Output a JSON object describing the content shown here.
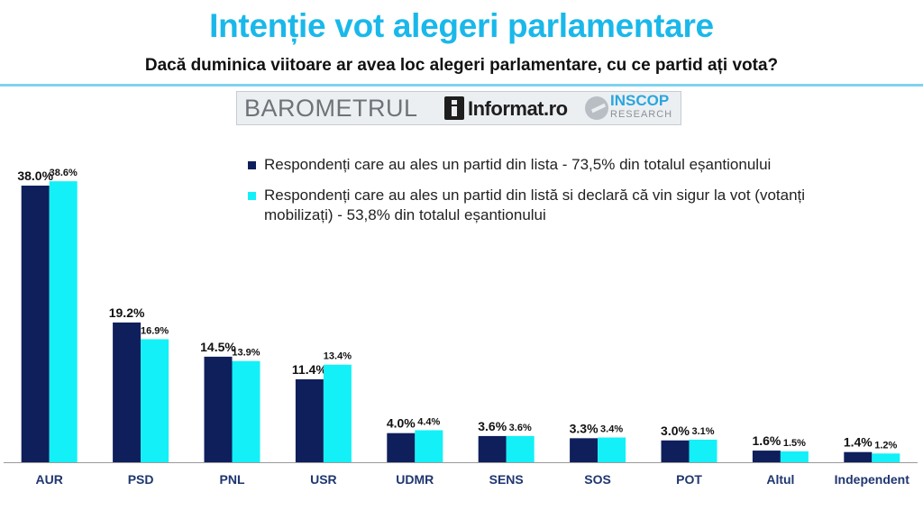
{
  "header": {
    "title": "Intenție vot alegeri parlamentare",
    "subtitle": "Dacă duminica viitoare ar avea loc alegeri parlamentare, cu ce partid ați vota?"
  },
  "logos": {
    "barometrul": "BAROMETRUL",
    "informat": "Informat.ro",
    "inscop": "INSCOP",
    "research": "RESEARCH"
  },
  "colors": {
    "title": "#1ab8ea",
    "series1": "#0f1f5c",
    "series2": "#13f0f7",
    "axis": "#9a9a9a"
  },
  "chart_data": {
    "type": "bar",
    "title": "Intenție vot alegeri parlamentare",
    "xlabel": "",
    "ylabel": "",
    "ylim": [
      0,
      40
    ],
    "grid": false,
    "legend_position": "top-right",
    "categories": [
      "AUR",
      "PSD",
      "PNL",
      "USR",
      "UDMR",
      "SENS",
      "SOS",
      "POT",
      "Altul",
      "Independent"
    ],
    "series": [
      {
        "name": "Respondenți care au ales un partid din lista - 73,5% din totalul eșantionului",
        "values": [
          38.0,
          19.2,
          14.5,
          11.4,
          4.0,
          3.6,
          3.3,
          3.0,
          1.6,
          1.4
        ],
        "labels": [
          "38.0%",
          "19.2%",
          "14.5%",
          "11.4%",
          "4.0%",
          "3.6%",
          "3.3%",
          "3.0%",
          "1.6%",
          "1.4%"
        ]
      },
      {
        "name": "Respondenți care au ales un partid din listă si declară că vin sigur la vot (votanți mobilizați) - 53,8% din totalul eșantionului",
        "values": [
          38.6,
          16.9,
          13.9,
          13.4,
          4.4,
          3.6,
          3.4,
          3.1,
          1.5,
          1.2
        ],
        "labels": [
          "38.6%",
          "16.9%",
          "13.9%",
          "13.4%",
          "4.4%",
          "3.6%",
          "3.4%",
          "3.1%",
          "1.5%",
          "1.2%"
        ]
      }
    ]
  }
}
